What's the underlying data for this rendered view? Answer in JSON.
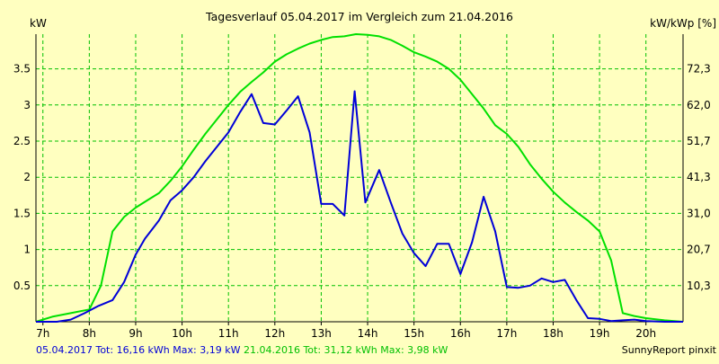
{
  "chart_data": {
    "type": "line",
    "title": "Tagesverlauf 05.04.2017 im Vergleich zum 21.04.2016",
    "ylabel_left": "kW",
    "ylabel_right": "kW/kWp [%]",
    "xlim": [
      6.85,
      20.8
    ],
    "ylim": [
      0,
      3.98
    ],
    "x_ticks": [
      {
        "value": 7,
        "label": "7h"
      },
      {
        "value": 8,
        "label": "8h"
      },
      {
        "value": 9,
        "label": "9h"
      },
      {
        "value": 10,
        "label": "10h"
      },
      {
        "value": 11,
        "label": "11h"
      },
      {
        "value": 12,
        "label": "12h"
      },
      {
        "value": 13,
        "label": "13h"
      },
      {
        "value": 14,
        "label": "14h"
      },
      {
        "value": 15,
        "label": "15h"
      },
      {
        "value": 16,
        "label": "16h"
      },
      {
        "value": 17,
        "label": "17h"
      },
      {
        "value": 18,
        "label": "18h"
      },
      {
        "value": 19,
        "label": "19h"
      },
      {
        "value": 20,
        "label": "20h"
      }
    ],
    "y_left_ticks": [
      {
        "value": 0.5,
        "label": "0.5"
      },
      {
        "value": 1,
        "label": "1"
      },
      {
        "value": 1.5,
        "label": "1.5"
      },
      {
        "value": 2,
        "label": "2"
      },
      {
        "value": 2.5,
        "label": "2.5"
      },
      {
        "value": 3,
        "label": "3"
      },
      {
        "value": 3.5,
        "label": "3.5"
      }
    ],
    "y_right_ticks": [
      {
        "value": 0.5,
        "label": "10,3"
      },
      {
        "value": 1,
        "label": "20,7"
      },
      {
        "value": 1.5,
        "label": "31,0"
      },
      {
        "value": 2,
        "label": "41,3"
      },
      {
        "value": 2.5,
        "label": "51,7"
      },
      {
        "value": 3,
        "label": "62,0"
      },
      {
        "value": 3.5,
        "label": "72,3"
      }
    ],
    "grid": true,
    "series": [
      {
        "name": "21.04.2016",
        "color": "#00e000",
        "points": [
          [
            6.85,
            0
          ],
          [
            7.2,
            0.07
          ],
          [
            7.6,
            0.12
          ],
          [
            8.0,
            0.17
          ],
          [
            8.25,
            0.5
          ],
          [
            8.5,
            1.25
          ],
          [
            8.75,
            1.45
          ],
          [
            9.0,
            1.58
          ],
          [
            9.25,
            1.68
          ],
          [
            9.5,
            1.78
          ],
          [
            9.75,
            1.95
          ],
          [
            10.0,
            2.15
          ],
          [
            10.25,
            2.38
          ],
          [
            10.5,
            2.6
          ],
          [
            10.75,
            2.8
          ],
          [
            11.0,
            3.0
          ],
          [
            11.25,
            3.18
          ],
          [
            11.5,
            3.32
          ],
          [
            11.75,
            3.45
          ],
          [
            12.0,
            3.6
          ],
          [
            12.25,
            3.7
          ],
          [
            12.5,
            3.78
          ],
          [
            12.75,
            3.85
          ],
          [
            13.0,
            3.9
          ],
          [
            13.25,
            3.94
          ],
          [
            13.5,
            3.95
          ],
          [
            13.75,
            3.98
          ],
          [
            14.0,
            3.97
          ],
          [
            14.25,
            3.95
          ],
          [
            14.5,
            3.9
          ],
          [
            14.75,
            3.82
          ],
          [
            15.0,
            3.73
          ],
          [
            15.25,
            3.67
          ],
          [
            15.5,
            3.6
          ],
          [
            15.75,
            3.5
          ],
          [
            16.0,
            3.35
          ],
          [
            16.25,
            3.15
          ],
          [
            16.5,
            2.95
          ],
          [
            16.75,
            2.72
          ],
          [
            17.0,
            2.6
          ],
          [
            17.25,
            2.42
          ],
          [
            17.5,
            2.18
          ],
          [
            17.75,
            1.98
          ],
          [
            18.0,
            1.8
          ],
          [
            18.25,
            1.65
          ],
          [
            18.5,
            1.52
          ],
          [
            18.75,
            1.4
          ],
          [
            19.0,
            1.25
          ],
          [
            19.25,
            0.85
          ],
          [
            19.5,
            0.12
          ],
          [
            19.75,
            0.08
          ],
          [
            20.0,
            0.05
          ],
          [
            20.4,
            0.02
          ],
          [
            20.8,
            0
          ]
        ]
      },
      {
        "name": "05.04.2017",
        "color": "#0000d8",
        "points": [
          [
            6.85,
            0
          ],
          [
            7.3,
            0.0
          ],
          [
            7.6,
            0.03
          ],
          [
            7.9,
            0.12
          ],
          [
            8.2,
            0.22
          ],
          [
            8.5,
            0.3
          ],
          [
            8.75,
            0.55
          ],
          [
            9.0,
            0.93
          ],
          [
            9.2,
            1.15
          ],
          [
            9.5,
            1.4
          ],
          [
            9.75,
            1.68
          ],
          [
            10.0,
            1.82
          ],
          [
            10.25,
            2.0
          ],
          [
            10.5,
            2.22
          ],
          [
            10.75,
            2.42
          ],
          [
            11.0,
            2.62
          ],
          [
            11.25,
            2.9
          ],
          [
            11.5,
            3.15
          ],
          [
            11.75,
            2.75
          ],
          [
            12.0,
            2.73
          ],
          [
            12.25,
            2.92
          ],
          [
            12.5,
            3.12
          ],
          [
            12.75,
            2.62
          ],
          [
            13.0,
            1.63
          ],
          [
            13.25,
            1.63
          ],
          [
            13.5,
            1.47
          ],
          [
            13.72,
            3.19
          ],
          [
            13.95,
            1.65
          ],
          [
            14.25,
            2.1
          ],
          [
            14.5,
            1.65
          ],
          [
            14.75,
            1.22
          ],
          [
            15.0,
            0.95
          ],
          [
            15.25,
            0.77
          ],
          [
            15.5,
            1.08
          ],
          [
            15.75,
            1.08
          ],
          [
            16.0,
            0.66
          ],
          [
            16.25,
            1.1
          ],
          [
            16.5,
            1.73
          ],
          [
            16.75,
            1.25
          ],
          [
            17.0,
            0.48
          ],
          [
            17.25,
            0.47
          ],
          [
            17.5,
            0.5
          ],
          [
            17.75,
            0.6
          ],
          [
            18.0,
            0.55
          ],
          [
            18.25,
            0.58
          ],
          [
            18.5,
            0.3
          ],
          [
            18.75,
            0.05
          ],
          [
            19.0,
            0.04
          ],
          [
            19.25,
            0.01
          ],
          [
            19.5,
            0.02
          ],
          [
            19.75,
            0.03
          ],
          [
            20.0,
            0.01
          ],
          [
            20.4,
            0.0
          ],
          [
            20.8,
            0
          ]
        ]
      }
    ],
    "footer_left": [
      {
        "text": "05.04.2017 Tot: 16,16 kWh Max: 3,19 kW",
        "color": "#0000d8"
      },
      {
        "text": "21.04.2016 Tot: 31,12 kWh Max: 3,98 kW",
        "color": "#00c000"
      }
    ],
    "footer_right": "SunnyReport pinxit"
  }
}
